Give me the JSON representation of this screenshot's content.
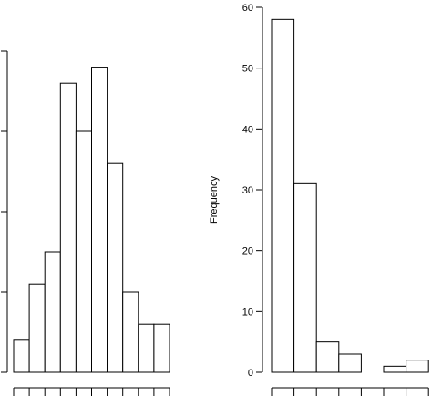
{
  "chart_data": [
    {
      "type": "bar",
      "title": "",
      "xlabel": "",
      "ylabel": "",
      "ylim": [
        0,
        20
      ],
      "values": [
        2,
        5.5,
        7.5,
        18,
        15,
        19,
        13,
        5,
        3,
        3
      ],
      "bar_color": "#ffffff",
      "edge_color": "#000000",
      "grid": false
    },
    {
      "type": "bar",
      "title": "",
      "xlabel": "",
      "ylabel": "Frequency",
      "ylim": [
        0,
        60
      ],
      "yticks": [
        "0",
        "10",
        "20",
        "30",
        "40",
        "50",
        "60"
      ],
      "values": [
        58,
        31,
        5,
        3,
        0,
        1,
        2
      ],
      "bar_color": "#ffffff",
      "edge_color": "#000000",
      "grid": false
    }
  ]
}
